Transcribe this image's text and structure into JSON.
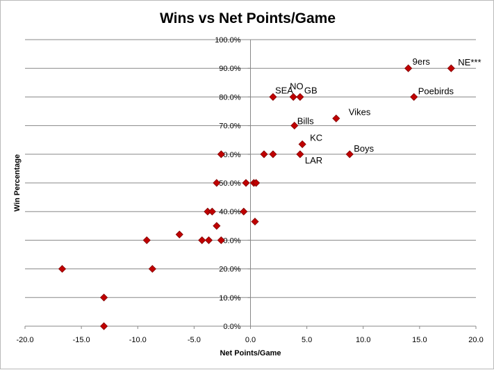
{
  "chart_data": {
    "type": "scatter",
    "title": "Wins vs Net Points/Game",
    "xlabel": "Net Points/Game",
    "ylabel": "Win Percentage",
    "xlim": [
      -20,
      20
    ],
    "ylim": [
      0,
      100
    ],
    "x_ticks": [
      "-20.0",
      "-15.0",
      "-10.0",
      "-5.0",
      "0.0",
      "5.0",
      "10.0",
      "15.0",
      "20.0"
    ],
    "y_ticks": [
      "0.0%",
      "10.0%",
      "20.0%",
      "30.0%",
      "40.0%",
      "50.0%",
      "60.0%",
      "70.0%",
      "80.0%",
      "90.0%",
      "100.0%"
    ],
    "grid": true,
    "legend": false,
    "marker_color": "#c00000",
    "marker_edge_color": "#7f0000",
    "points": [
      {
        "x": 17.8,
        "y": 90,
        "label": "NE***"
      },
      {
        "x": 14.0,
        "y": 90,
        "label": "9ers"
      },
      {
        "x": 14.5,
        "y": 80,
        "label": "Poebirds"
      },
      {
        "x": 2.0,
        "y": 80,
        "label": "SEA"
      },
      {
        "x": 3.8,
        "y": 80,
        "label": "NO"
      },
      {
        "x": 4.4,
        "y": 80,
        "label": "GB"
      },
      {
        "x": 7.6,
        "y": 72.5,
        "label": "Vikes"
      },
      {
        "x": 3.9,
        "y": 70,
        "label": "Bills"
      },
      {
        "x": 4.6,
        "y": 63.5,
        "label": "KC"
      },
      {
        "x": 8.8,
        "y": 60,
        "label": "Boys"
      },
      {
        "x": 4.4,
        "y": 60,
        "label": "LAR"
      },
      {
        "x": 1.2,
        "y": 60
      },
      {
        "x": 2.0,
        "y": 60
      },
      {
        "x": -2.6,
        "y": 60
      },
      {
        "x": -3.0,
        "y": 50
      },
      {
        "x": -0.4,
        "y": 50
      },
      {
        "x": 0.3,
        "y": 50
      },
      {
        "x": 0.5,
        "y": 50
      },
      {
        "x": -3.8,
        "y": 40
      },
      {
        "x": -3.4,
        "y": 40
      },
      {
        "x": -0.6,
        "y": 40
      },
      {
        "x": 0.4,
        "y": 36.5
      },
      {
        "x": -3.0,
        "y": 35
      },
      {
        "x": -6.3,
        "y": 32
      },
      {
        "x": -9.2,
        "y": 30
      },
      {
        "x": -4.3,
        "y": 30
      },
      {
        "x": -3.7,
        "y": 30
      },
      {
        "x": -2.6,
        "y": 30
      },
      {
        "x": -16.7,
        "y": 20
      },
      {
        "x": -8.7,
        "y": 20
      },
      {
        "x": -13.0,
        "y": 10
      },
      {
        "x": -13.0,
        "y": 0
      }
    ]
  }
}
